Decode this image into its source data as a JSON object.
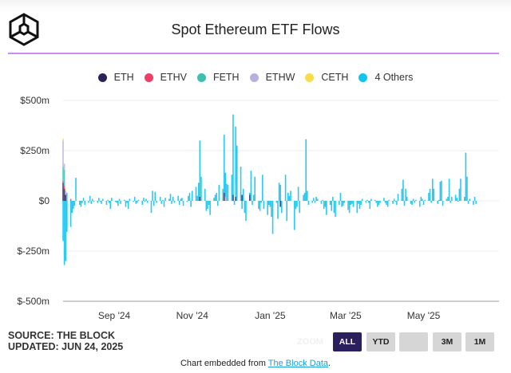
{
  "header": {
    "title": "Spot Ethereum ETF Flows",
    "logo_alt": "The Block"
  },
  "legend": [
    {
      "label": "ETH",
      "color": "#2b2257"
    },
    {
      "label": "ETHV",
      "color": "#ee3f66"
    },
    {
      "label": "FETH",
      "color": "#3dbfb2"
    },
    {
      "label": "ETHW",
      "color": "#b9b0e2"
    },
    {
      "label": "CETH",
      "color": "#fbdc4a"
    },
    {
      "label": "4 Others",
      "color": "#14c3f0"
    }
  ],
  "footer": {
    "source": "SOURCE: THE BLOCK",
    "updated": "UPDATED: JUN 24, 2025",
    "zoom_label": "ZOOM",
    "buttons": [
      {
        "label": "ALL",
        "active": true
      },
      {
        "label": "YTD",
        "active": false
      },
      {
        "label": "",
        "active": false
      },
      {
        "label": "3M",
        "active": false
      },
      {
        "label": "1M",
        "active": false
      }
    ],
    "embed_prefix": "Chart embedded from ",
    "embed_link": "The Block Data",
    "embed_suffix": "."
  },
  "chart_data": {
    "type": "bar",
    "stacked": true,
    "title": "Spot Ethereum ETF Flows",
    "units": "USD millions",
    "x_start": "2024-07-23",
    "x_end": "2025-06-24",
    "x_frequency": "trading-day",
    "xlim": [
      "2024-07-23",
      "2025-06-24"
    ],
    "ylim": [
      -500,
      500
    ],
    "y_ticks": [
      {
        "value": 500,
        "label": "$500m"
      },
      {
        "value": 250,
        "label": "$250m"
      },
      {
        "value": 0,
        "label": "$0"
      },
      {
        "value": -250,
        "label": "$-250m"
      },
      {
        "value": -500,
        "label": "$-500m"
      }
    ],
    "x_ticks": [
      {
        "date": "2024-09-01",
        "label": "Sep '24"
      },
      {
        "date": "2024-11-01",
        "label": "Nov '24"
      },
      {
        "date": "2025-01-01",
        "label": "Jan '25"
      },
      {
        "date": "2025-03-01",
        "label": "Mar '25"
      },
      {
        "date": "2025-05-01",
        "label": "May '25"
      }
    ],
    "grid": true,
    "legend_position": "top-center",
    "series": [
      {
        "name": "ETH",
        "points": [
          [
            0,
            90
          ],
          [
            1,
            60
          ],
          [
            2,
            30
          ],
          [
            77,
            20
          ],
          [
            90,
            40
          ],
          [
            95,
            30
          ],
          [
            97,
            20
          ],
          [
            100,
            30
          ],
          [
            104,
            30
          ],
          [
            122,
            -30
          ]
        ]
      },
      {
        "name": "ETHV",
        "points": [
          [
            0,
            10
          ],
          [
            1,
            15
          ],
          [
            4,
            10
          ]
        ]
      },
      {
        "name": "FETH",
        "points": [
          [
            0,
            70
          ],
          [
            1,
            80
          ],
          [
            3,
            40
          ],
          [
            8,
            20
          ],
          [
            77,
            80
          ],
          [
            89,
            60
          ],
          [
            93,
            80
          ],
          [
            97,
            60
          ],
          [
            137,
            10
          ],
          [
            146,
            -20
          ]
        ]
      },
      {
        "name": "ETHW",
        "points": [
          [
            0,
            130
          ],
          [
            1,
            30
          ],
          [
            2,
            20
          ],
          [
            91,
            20
          ]
        ]
      },
      {
        "name": "CETH",
        "points": [
          [
            0,
            10
          ],
          [
            2,
            8
          ]
        ]
      },
      {
        "name": "4 Others",
        "values": [
          -200,
          -320,
          -300,
          -155,
          -130,
          -60,
          -40,
          -25,
          95,
          -20,
          -30,
          -10,
          15,
          -20,
          -10,
          25,
          -15,
          10,
          -5,
          -10,
          15,
          -5,
          -15,
          10,
          -20,
          5,
          -10,
          -40,
          15,
          -5,
          -10,
          -25,
          10,
          -15,
          5,
          -30,
          -10,
          -40,
          10,
          -5,
          20,
          -15,
          -10,
          5,
          -20,
          15,
          -5,
          10,
          -10,
          -60,
          50,
          -25,
          45,
          -10,
          20,
          -15,
          5,
          -30,
          15,
          10,
          35,
          -15,
          20,
          -10,
          25,
          -20,
          10,
          15,
          -25,
          -5,
          25,
          40,
          -30,
          50,
          70,
          25,
          90,
          200,
          120,
          60,
          -50,
          -40,
          -20,
          -70,
          15,
          30,
          40,
          -25,
          80,
          0,
          290,
          120,
          85,
          0,
          130,
          400,
          -20,
          290,
          275,
          170,
          -40,
          60,
          -60,
          -100,
          10,
          150,
          -20,
          30,
          120,
          -40,
          -50,
          -10,
          130,
          -40,
          -70,
          -20,
          -30,
          -80,
          -165,
          -10,
          -90,
          90,
          80,
          -60,
          130,
          -100,
          40,
          25,
          50,
          -145,
          -40,
          -30,
          70,
          -60,
          30,
          40,
          307,
          40,
          -20,
          -10,
          15,
          -10,
          20,
          10,
          -15,
          5,
          -20,
          -30,
          -70,
          -20,
          -50,
          20,
          -60,
          -80,
          -20,
          40,
          -30,
          -25,
          -10,
          -45,
          -60,
          -20,
          -15,
          -30,
          -60,
          -15,
          -40,
          -20,
          10,
          -10,
          5,
          -10,
          -40,
          10,
          5,
          -10,
          -30,
          -20,
          -10,
          15,
          -10,
          -20,
          -30,
          5,
          -15,
          10,
          -5,
          -20,
          35,
          60,
          105,
          -25,
          60,
          20,
          -15,
          -20,
          10,
          -10,
          5,
          -30,
          20,
          10,
          -20,
          5,
          40,
          60,
          -10,
          110,
          60,
          -15,
          5,
          95,
          100,
          -25,
          10,
          20,
          110,
          -10,
          20,
          30,
          15,
          -5,
          60,
          110,
          20,
          240,
          120,
          -15,
          10,
          -20,
          20,
          -15
        ]
      }
    ]
  }
}
